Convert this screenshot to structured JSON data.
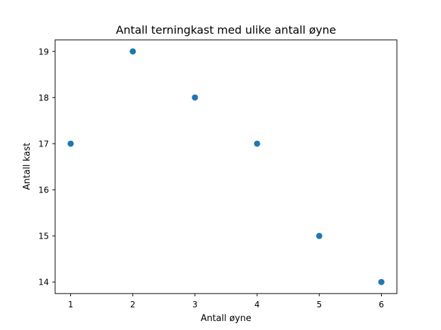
{
  "chart_data": {
    "type": "scatter",
    "title": "Antall terningkast med ulike antall øyne",
    "xlabel": "Antall øyne",
    "ylabel": "Antall kast",
    "x": [
      1,
      2,
      3,
      4,
      5,
      6
    ],
    "y": [
      17,
      19,
      18,
      17,
      15,
      14
    ],
    "xlim": [
      0.75,
      6.25
    ],
    "ylim": [
      13.75,
      19.25
    ],
    "xticks": [
      1,
      2,
      3,
      4,
      5,
      6
    ],
    "yticks": [
      14,
      15,
      16,
      17,
      18,
      19
    ],
    "grid": false,
    "color": "#1f77b4"
  }
}
